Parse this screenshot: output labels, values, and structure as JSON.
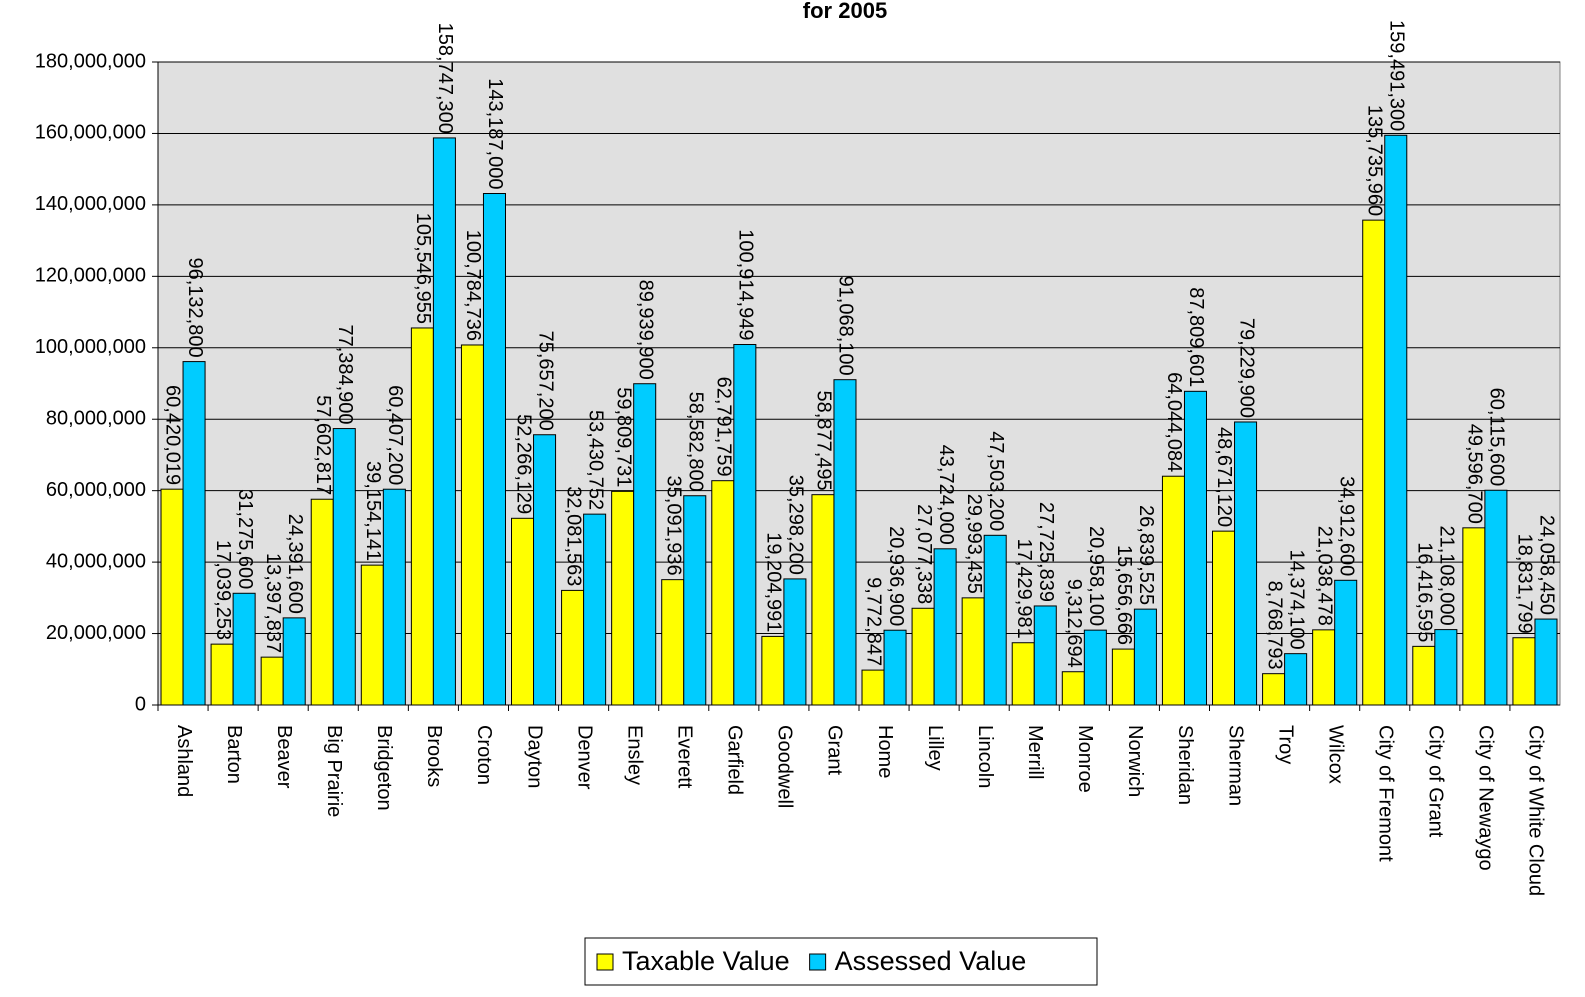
{
  "chart_data": {
    "type": "bar",
    "title": "for 2005",
    "categories": [
      "Ashland",
      "Barton",
      "Beaver",
      "Big Prairie",
      "Bridgeton",
      "Brooks",
      "Croton",
      "Dayton",
      "Denver",
      "Ensley",
      "Everett",
      "Garfield",
      "Goodwell",
      "Grant",
      "Home",
      "Lilley",
      "Lincoln",
      "Merrill",
      "Monroe",
      "Norwich",
      "Sheridan",
      "Sherman",
      "Troy",
      "Wilcox",
      "City of Fremont",
      "City of Grant",
      "City of Newaygo",
      "City of White Cloud"
    ],
    "series": [
      {
        "name": "Taxable Value",
        "color": "#ffff00",
        "values": [
          60420019,
          17039253,
          13397837,
          57602817,
          39154141,
          105546955,
          100784736,
          52266129,
          32081563,
          59809731,
          35091936,
          62791759,
          19204991,
          58877495,
          9772847,
          27077338,
          29993435,
          17429981,
          9312694,
          15656666,
          64044084,
          48671120,
          8768793,
          21038478,
          135735960,
          16416595,
          49596700,
          18831799
        ],
        "value_labels": [
          "60,420,019",
          "17,039,253",
          "13,397,837",
          "57,602,817",
          "39,154,141",
          "105,546,955",
          "100,784,736",
          "52,266,129",
          "32,081,563",
          "59,809,731",
          "35,091,936",
          "62,791,759",
          "19,204,991",
          "58,877,495",
          "9,772,847",
          "27,077,338",
          "29,993,435",
          "17,429,981",
          "9,312,694",
          "15,656,666",
          "64,044,084",
          "48,671,120",
          "8,768,793",
          "21,038,478",
          "135,735,960",
          "16,416,595",
          "49,596,700",
          "18,831,799"
        ]
      },
      {
        "name": "Assessed Value",
        "color": "#00ccff",
        "values": [
          96132800,
          31275600,
          24391600,
          77384900,
          60407200,
          158747300,
          143187000,
          75657200,
          53430752,
          89939900,
          58582800,
          100914949,
          35298200,
          91068100,
          20936900,
          43724000,
          47503200,
          27725839,
          20958100,
          26839525,
          87809601,
          79229900,
          14374100,
          34912600,
          159491300,
          21108000,
          60115600,
          24058450
        ],
        "value_labels": [
          "96,132,800",
          "31,275,600",
          "24,391,600",
          "77,384,900",
          "60,407,200",
          "158,747,300",
          "143,187,000",
          "75,657,200",
          "53,430,752",
          "89,939,900",
          "58,582,800",
          "100,914,949",
          "35,298,200",
          "91,068,100",
          "20,936,900",
          "43,724,000",
          "47,503,200",
          "27,725,839",
          "20,958,100",
          "26,839,525",
          "87,809,601",
          "79,229,900",
          "14,374,100",
          "34,912,600",
          "159,491,300",
          "21,108,000",
          "60,115,600",
          "24,058,450"
        ]
      }
    ],
    "ylim": [
      0,
      180000000
    ],
    "yticks": [
      0,
      {
        "value": 20000000,
        "label": "20,000,000"
      },
      {
        "value": 40000000,
        "label": "40,000,000"
      },
      {
        "value": 60000000,
        "label": "60,000,000"
      },
      {
        "value": 80000000,
        "label": "80,000,000"
      },
      {
        "value": 100000000,
        "label": "100,000,000"
      },
      {
        "value": 120000000,
        "label": "120,000,000"
      },
      {
        "value": 140000000,
        "label": "140,000,000"
      },
      {
        "value": 160000000,
        "label": "160,000,000"
      },
      {
        "value": 180000000,
        "label": "180,000,000"
      }
    ],
    "grid": true,
    "legend": "bottom"
  }
}
